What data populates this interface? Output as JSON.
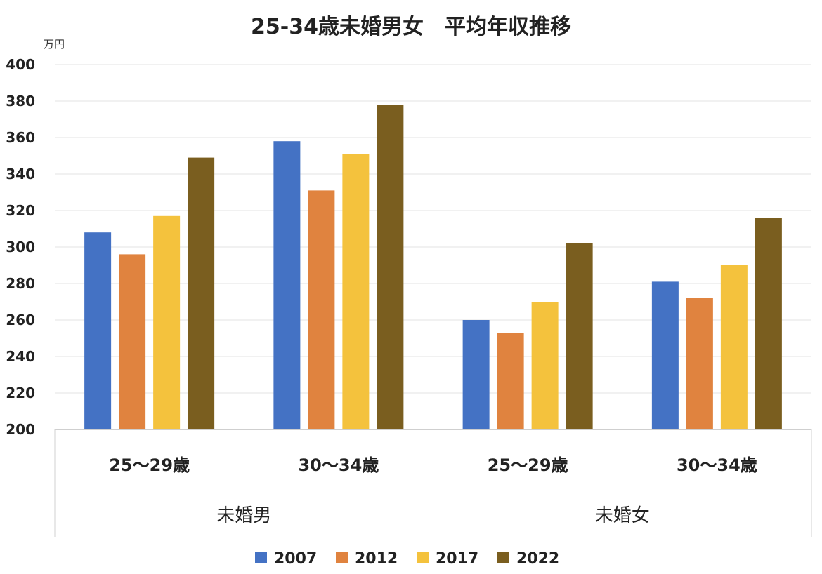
{
  "chart_data": {
    "type": "bar",
    "title": "25-34歳未婚男女　平均年収推移",
    "unit_label": "万円",
    "ylim": [
      200,
      400
    ],
    "yticks": [
      200,
      220,
      240,
      260,
      280,
      300,
      320,
      340,
      360,
      380,
      400
    ],
    "grid": true,
    "legend_position": "bottom",
    "groups": [
      {
        "label": "未婚男",
        "categories": [
          "25～29歳",
          "30～34歳"
        ]
      },
      {
        "label": "未婚女",
        "categories": [
          "25～29歳",
          "30～34歳"
        ]
      }
    ],
    "series": [
      {
        "name": "2007",
        "color": "#4472c4",
        "values": [
          308,
          358,
          260,
          281
        ]
      },
      {
        "name": "2012",
        "color": "#e0833f",
        "values": [
          296,
          331,
          253,
          272
        ]
      },
      {
        "name": "2017",
        "color": "#f4c23d",
        "values": [
          317,
          351,
          270,
          290
        ]
      },
      {
        "name": "2022",
        "color": "#7a5e1f",
        "values": [
          349,
          378,
          302,
          316
        ]
      }
    ]
  }
}
